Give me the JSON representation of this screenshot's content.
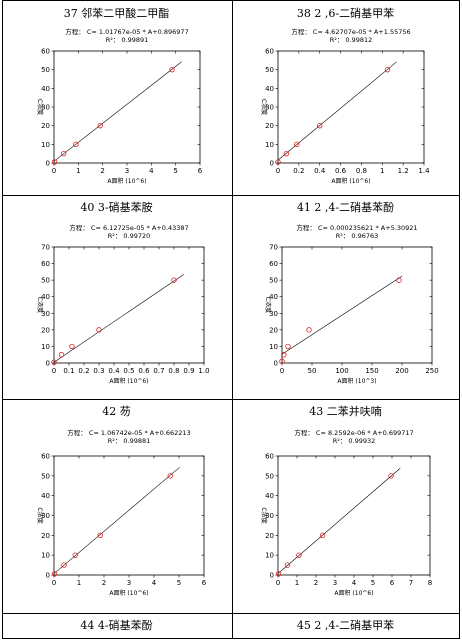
{
  "cells": [
    {
      "title": "37 邻苯二甲酸二甲酯",
      "hasChart": true
    },
    {
      "title": "38  2 ,6-二硝基甲苯",
      "hasChart": true
    },
    {
      "title": "40  3-硝基苯胺",
      "hasChart": true
    },
    {
      "title": "41  2 ,4-二硝基苯酚",
      "hasChart": true
    },
    {
      "title": "42  芴",
      "hasChart": true
    },
    {
      "title": "43  二苯并呋喃",
      "hasChart": true
    },
    {
      "title": "44  4-硝基苯酚",
      "hasChart": false
    },
    {
      "title": "45  2 ,4-二硝基甲苯",
      "hasChart": false
    }
  ],
  "chart_data": [
    {
      "type": "scatter",
      "equation": "方程： C= 1.01767e-05 * A+0.896977",
      "r2": "R²： 0.99891",
      "xlabel": "A面积 (10^6)",
      "ylabel": "C浓度",
      "xlim": [
        0,
        6
      ],
      "ylim": [
        0,
        60
      ],
      "xticks": [
        "0",
        "1",
        "2",
        "3",
        "4",
        "5",
        "6"
      ],
      "yticks": [
        "0",
        "10",
        "20",
        "30",
        "40",
        "50",
        "60"
      ],
      "points": [
        [
          0.02,
          0.5
        ],
        [
          0.4,
          5
        ],
        [
          0.9,
          10
        ],
        [
          1.9,
          20
        ],
        [
          4.85,
          50
        ]
      ],
      "fit": {
        "slope": 10.1767,
        "intercept": 0.896977
      },
      "grid": false
    },
    {
      "type": "scatter",
      "equation": "方程： C= 4.62707e-05 * A+1.55756",
      "r2": "R²： 0.99812",
      "xlabel": "A面积 (10^6)",
      "ylabel": "C浓度",
      "xlim": [
        0,
        1.4
      ],
      "ylim": [
        0,
        60
      ],
      "xticks": [
        "0",
        "0.2",
        "0.4",
        "0.6",
        "0.8",
        "1",
        "1.2",
        "1.4"
      ],
      "yticks": [
        "0",
        "10",
        "20",
        "30",
        "40",
        "50",
        "60"
      ],
      "points": [
        [
          0.0,
          0.5
        ],
        [
          0.08,
          5
        ],
        [
          0.18,
          10
        ],
        [
          0.4,
          20
        ],
        [
          1.05,
          50
        ]
      ],
      "fit": {
        "slope": 46.2707,
        "intercept": 1.55756
      },
      "grid": false
    },
    {
      "type": "scatter",
      "equation": "方程： C= 6.12725e-05 * A+0.43387",
      "r2": "R²： 0.99720",
      "xlabel": "A面积 (10^6)",
      "ylabel": "C浓度",
      "xlim": [
        0,
        1
      ],
      "ylim": [
        0,
        70
      ],
      "xticks": [
        "0",
        "0.1",
        "0.2",
        "0.3",
        "0.4",
        "0.5",
        "0.6",
        "0.7",
        "0.8",
        "0.9",
        "1.0"
      ],
      "yticks": [
        "0",
        "10",
        "20",
        "30",
        "40",
        "50",
        "60",
        "70"
      ],
      "points": [
        [
          0.0,
          0.5
        ],
        [
          0.05,
          5
        ],
        [
          0.12,
          10
        ],
        [
          0.3,
          20
        ],
        [
          0.8,
          50
        ]
      ],
      "fit": {
        "slope": 61.2725,
        "intercept": 0.43387
      },
      "grid": false
    },
    {
      "type": "scatter",
      "equation": "方程： C= 0.000235621 * A+5.30921",
      "r2": "R²： 0.96763",
      "xlabel": "A面积 (10^3)",
      "ylabel": "C浓度",
      "xlim": [
        0,
        250
      ],
      "ylim": [
        0,
        70
      ],
      "xticks": [
        "0",
        "50",
        "100",
        "150",
        "200",
        "250"
      ],
      "yticks": [
        "0",
        "10",
        "20",
        "30",
        "40",
        "50",
        "60",
        "70"
      ],
      "points": [
        [
          0,
          1
        ],
        [
          3,
          5
        ],
        [
          10,
          10
        ],
        [
          45,
          20
        ],
        [
          195,
          50
        ]
      ],
      "fit": {
        "slope": 0.235621,
        "intercept": 5.30921
      },
      "grid": false
    },
    {
      "type": "scatter",
      "equation": "方程： C= 1.06742e-05 * A+0.662213",
      "r2": "R²： 0.99881",
      "xlabel": "A面积 (10^6)",
      "ylabel": "C浓度",
      "xlim": [
        0,
        6
      ],
      "ylim": [
        0,
        60
      ],
      "xticks": [
        "0",
        "1",
        "2",
        "3",
        "4",
        "5",
        "6"
      ],
      "yticks": [
        "0",
        "10",
        "20",
        "30",
        "40",
        "50",
        "60"
      ],
      "points": [
        [
          0.02,
          0.5
        ],
        [
          0.4,
          5
        ],
        [
          0.85,
          10
        ],
        [
          1.85,
          20
        ],
        [
          4.65,
          50
        ]
      ],
      "fit": {
        "slope": 10.6742,
        "intercept": 0.662213
      },
      "grid": false
    },
    {
      "type": "scatter",
      "equation": "方程： C= 8.2592e-06 * A+0.699717",
      "r2": "R²： 0.99932",
      "xlabel": "A面积 (10^6)",
      "ylabel": "C浓度",
      "xlim": [
        0,
        8
      ],
      "ylim": [
        0,
        60
      ],
      "xticks": [
        "0",
        "1",
        "2",
        "3",
        "4",
        "5",
        "6",
        "7",
        "8"
      ],
      "yticks": [
        "0",
        "10",
        "20",
        "30",
        "40",
        "50",
        "60"
      ],
      "points": [
        [
          0.02,
          0.5
        ],
        [
          0.5,
          5
        ],
        [
          1.1,
          10
        ],
        [
          2.35,
          20
        ],
        [
          5.95,
          50
        ]
      ],
      "fit": {
        "slope": 8.2592,
        "intercept": 0.699717
      },
      "grid": false
    }
  ]
}
